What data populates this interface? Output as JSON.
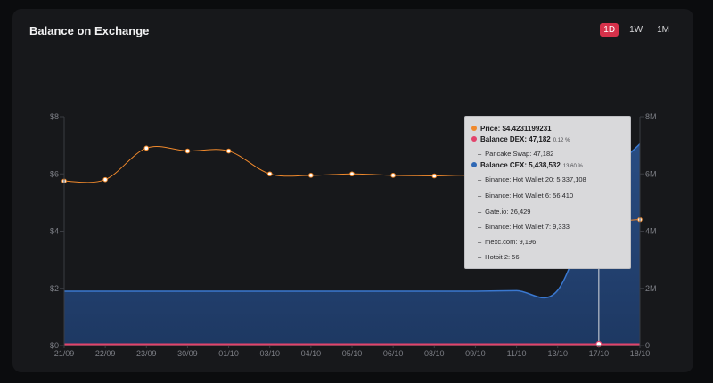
{
  "widget": {
    "title": "Balance on Exchange",
    "ranges": [
      {
        "label": "1D",
        "active": true
      },
      {
        "label": "1W",
        "active": false
      },
      {
        "label": "1M",
        "active": false
      }
    ]
  },
  "tooltip": {
    "price_label": "Price: $4.4231199231",
    "dex_label": "Balance DEX: 47,182",
    "dex_pct": "0.12 %",
    "dex_items": [
      "Pancake Swap: 47,182"
    ],
    "cex_label": "Balance CEX: 5,438,532",
    "cex_pct": "13.60 %",
    "cex_items": [
      "Binance: Hot Wallet 20: 5,337,108",
      "Binance: Hot Wallet 6: 56,410",
      "Gate.io: 26,429",
      "Binance: Hot Wallet 7: 9,333",
      "mexc.com: 9,196",
      "Hotbit 2: 56"
    ]
  },
  "colors": {
    "price": "#f0892c",
    "dex": "#e2436b",
    "cex": "#2f68b5",
    "active_range": "#d5314a"
  },
  "chart_data": {
    "type": "line",
    "categories": [
      "21/09",
      "22/09",
      "23/09",
      "30/09",
      "01/10",
      "03/10",
      "04/10",
      "05/10",
      "06/10",
      "08/10",
      "09/10",
      "11/10",
      "13/10",
      "17/10",
      "18/10"
    ],
    "left_ticks": [
      "$0",
      "$2",
      "$4",
      "$6",
      "$8"
    ],
    "right_ticks": [
      "0",
      "2M",
      "4M",
      "6M",
      "8M"
    ],
    "ylim_left": [
      0,
      8
    ],
    "ylim_right": [
      0,
      8000000
    ],
    "series": [
      {
        "name": "Price",
        "axis": "left",
        "values": [
          5.75,
          5.8,
          6.9,
          6.8,
          6.8,
          6.0,
          5.95,
          6.0,
          5.95,
          5.93,
          5.9,
          5.3,
          5.1,
          4.42,
          4.4
        ]
      },
      {
        "name": "Balance CEX",
        "axis": "right",
        "values": [
          1900000,
          1900000,
          1900000,
          1900000,
          1900000,
          1900000,
          1900000,
          1900000,
          1900000,
          1900000,
          1900000,
          1920000,
          1930000,
          5438532,
          7050000
        ]
      },
      {
        "name": "Balance DEX",
        "axis": "right",
        "values": [
          47000,
          47000,
          47000,
          47000,
          47000,
          47000,
          47000,
          47000,
          47000,
          47000,
          47000,
          47000,
          47000,
          47182,
          47182
        ]
      }
    ],
    "hover_category": "17/10",
    "grid": true
  }
}
